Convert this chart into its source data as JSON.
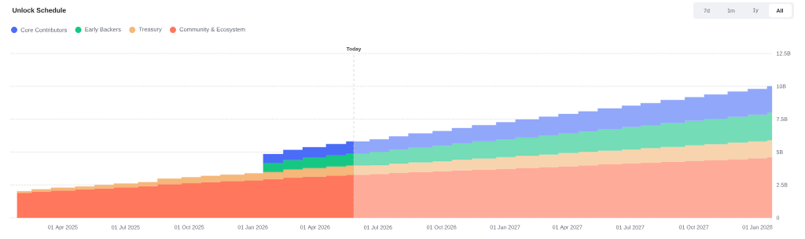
{
  "chart_data": {
    "type": "area",
    "title": "Unlock Schedule",
    "stacked": true,
    "xlim": [
      "2025-01-15",
      "2028-01-22"
    ],
    "xticks": [
      {
        "value": "2025-04-01",
        "label": "01 Apr 2025"
      },
      {
        "value": "2025-07-01",
        "label": "01 Jul 2025"
      },
      {
        "value": "2025-10-01",
        "label": "01 Oct 2025"
      },
      {
        "value": "2026-01-01",
        "label": "01 Jan 2026"
      },
      {
        "value": "2026-04-01",
        "label": "01 Apr 2026"
      },
      {
        "value": "2026-07-01",
        "label": "01 Jul 2026"
      },
      {
        "value": "2026-10-01",
        "label": "01 Oct 2026"
      },
      {
        "value": "2027-01-01",
        "label": "01 Jan 2027"
      },
      {
        "value": "2027-04-01",
        "label": "01 Apr 2027"
      },
      {
        "value": "2027-07-01",
        "label": "01 Jul 2027"
      },
      {
        "value": "2027-10-01",
        "label": "01 Oct 2027"
      },
      {
        "value": "2028-01-01",
        "label": "01 Jan 2028"
      }
    ],
    "ylim": [
      0,
      12.5
    ],
    "yticks": [
      0,
      {
        "value": 2.5,
        "label": "2.5B"
      },
      {
        "value": 5,
        "label": "5B"
      },
      {
        "value": 7.5,
        "label": "7.5B"
      },
      {
        "value": 10,
        "label": "10B"
      },
      {
        "value": 12.5,
        "label": "12.5B"
      }
    ],
    "grid": "y",
    "legend": "top left",
    "x": [
      "2025-01-25",
      "2025-02-15",
      "2025-02-15",
      "2025-03-15",
      "2025-03-15",
      "2025-04-19",
      "2025-04-19",
      "2025-05-17",
      "2025-05-17",
      "2025-06-14",
      "2025-06-14",
      "2025-07-19",
      "2025-07-19",
      "2025-08-16",
      "2025-08-16",
      "2025-09-20",
      "2025-09-20",
      "2025-10-18",
      "2025-10-18",
      "2025-11-15",
      "2025-11-15",
      "2025-12-20",
      "2025-12-20",
      "2026-01-16",
      "2026-01-16",
      "2026-02-14",
      "2026-02-14",
      "2026-03-14",
      "2026-03-14",
      "2026-04-17",
      "2026-04-17",
      "2026-05-16",
      "2026-05-16",
      "2026-05-27",
      "2026-05-27",
      "2026-06-19",
      "2026-06-19",
      "2026-07-17",
      "2026-07-17",
      "2026-08-14",
      "2026-08-14",
      "2026-09-18",
      "2026-09-18",
      "2026-10-16",
      "2026-10-16",
      "2026-11-14",
      "2026-11-14",
      "2026-12-19",
      "2026-12-19",
      "2027-01-16",
      "2027-01-16",
      "2027-02-19",
      "2027-02-19",
      "2027-03-19",
      "2027-03-19",
      "2027-04-17",
      "2027-04-17",
      "2027-05-15",
      "2027-05-15",
      "2027-06-19",
      "2027-06-19",
      "2027-07-16",
      "2027-07-16",
      "2027-08-14",
      "2027-08-14",
      "2027-09-18",
      "2027-09-18",
      "2027-10-16",
      "2027-10-16",
      "2027-11-19",
      "2027-11-19",
      "2027-12-18",
      "2027-12-18",
      "2028-01-15",
      "2028-01-15",
      "2028-01-22"
    ],
    "series": [
      {
        "name": "Community & Ecosystem",
        "color": "#ff775c",
        "values": [
          1.9,
          1.9,
          1.98,
          1.98,
          2.08,
          2.08,
          2.16,
          2.16,
          2.23,
          2.23,
          2.32,
          2.32,
          2.4,
          2.4,
          2.56,
          2.56,
          2.63,
          2.63,
          2.71,
          2.71,
          2.8,
          2.8,
          2.86,
          2.86,
          2.94,
          2.94,
          3.05,
          3.05,
          3.13,
          3.13,
          3.22,
          3.22,
          3.27,
          3.27,
          null,
          null,
          null,
          null,
          null,
          null,
          null,
          null,
          null,
          null,
          null,
          null,
          null,
          null,
          null,
          null,
          null,
          null,
          null,
          null,
          null,
          null,
          null,
          null,
          null,
          null,
          null,
          null,
          null,
          null,
          null,
          null,
          null,
          null,
          null,
          null,
          null,
          null,
          null,
          null,
          null,
          null
        ]
      },
      {
        "name": "Treasury",
        "color": "#f5b77a",
        "values": [
          0.12,
          0.12,
          0.18,
          0.18,
          0.2,
          0.2,
          0.22,
          0.22,
          0.27,
          0.27,
          0.28,
          0.28,
          0.3,
          0.3,
          0.42,
          0.42,
          0.45,
          0.45,
          0.47,
          0.47,
          0.48,
          0.48,
          0.52,
          0.52,
          0.54,
          0.54,
          0.63,
          0.63,
          0.65,
          0.65,
          0.68,
          0.68,
          0.71,
          0.71,
          null,
          null,
          null,
          null,
          null,
          null,
          null,
          null,
          null,
          null,
          null,
          null,
          null,
          null,
          null,
          null,
          null,
          null,
          null,
          null,
          null,
          null,
          null,
          null,
          null,
          null,
          null,
          null,
          null,
          null,
          null,
          null,
          null,
          null,
          null,
          null,
          null,
          null,
          null,
          null,
          null,
          null
        ]
      },
      {
        "name": "Early Backers",
        "color": "#16c784",
        "values": [
          null,
          null,
          null,
          null,
          null,
          null,
          null,
          null,
          null,
          null,
          null,
          null,
          null,
          null,
          null,
          null,
          null,
          null,
          null,
          null,
          null,
          null,
          null,
          null,
          0.7,
          0.7,
          0.72,
          0.72,
          0.8,
          0.8,
          0.84,
          0.84,
          0.92,
          0.92,
          null,
          null,
          null,
          null,
          null,
          null,
          null,
          null,
          null,
          null,
          null,
          null,
          null,
          null,
          null,
          null,
          null,
          null,
          null,
          null,
          null,
          null,
          null,
          null,
          null,
          null,
          null,
          null,
          null,
          null,
          null,
          null,
          null,
          null,
          null,
          null,
          null,
          null,
          null,
          null,
          null,
          null
        ]
      },
      {
        "name": "Core Contributors",
        "color": "#4a6cf7",
        "values": [
          null,
          null,
          null,
          null,
          null,
          null,
          null,
          null,
          null,
          null,
          null,
          null,
          null,
          null,
          null,
          null,
          null,
          null,
          null,
          null,
          null,
          null,
          null,
          null,
          0.66,
          0.66,
          0.76,
          0.76,
          0.78,
          0.78,
          0.86,
          0.86,
          0.9,
          0.9,
          null,
          null,
          null,
          null,
          null,
          null,
          null,
          null,
          null,
          null,
          null,
          null,
          null,
          null,
          null,
          null,
          null,
          null,
          null,
          null,
          null,
          null,
          null,
          null,
          null,
          null,
          null,
          null,
          null,
          null,
          null,
          null,
          null,
          null,
          null,
          null,
          null,
          null,
          null,
          null,
          null,
          null
        ]
      },
      {
        "color": "#ffab9a",
        "values": [
          null,
          null,
          null,
          null,
          null,
          null,
          null,
          null,
          null,
          null,
          null,
          null,
          null,
          null,
          null,
          null,
          null,
          null,
          null,
          null,
          null,
          null,
          null,
          null,
          null,
          null,
          null,
          null,
          null,
          null,
          null,
          null,
          null,
          null,
          3.27,
          3.27,
          3.34,
          3.34,
          3.41,
          3.41,
          3.48,
          3.48,
          3.54,
          3.54,
          3.61,
          3.61,
          3.65,
          3.65,
          3.72,
          3.72,
          3.79,
          3.79,
          3.86,
          3.86,
          3.92,
          3.92,
          3.99,
          3.99,
          4.06,
          4.06,
          4.13,
          4.13,
          4.19,
          4.19,
          4.26,
          4.26,
          4.33,
          4.33,
          4.39,
          4.39,
          4.46,
          4.46,
          4.53,
          4.53,
          4.62,
          4.62
        ]
      },
      {
        "color": "#f8d4ae",
        "values": [
          null,
          null,
          null,
          null,
          null,
          null,
          null,
          null,
          null,
          null,
          null,
          null,
          null,
          null,
          null,
          null,
          null,
          null,
          null,
          null,
          null,
          null,
          null,
          null,
          null,
          null,
          null,
          null,
          null,
          null,
          null,
          null,
          null,
          null,
          0.71,
          0.71,
          0.67,
          0.67,
          0.72,
          0.72,
          0.74,
          0.74,
          0.76,
          0.76,
          0.81,
          0.81,
          0.86,
          0.86,
          0.9,
          0.9,
          0.94,
          0.94,
          0.96,
          0.96,
          1.01,
          1.01,
          1.03,
          1.03,
          1.05,
          1.05,
          1.07,
          1.07,
          1.12,
          1.12,
          1.14,
          1.14,
          1.19,
          1.19,
          1.22,
          1.22,
          1.26,
          1.26,
          1.28,
          1.28,
          1.28,
          1.28
        ]
      },
      {
        "color": "#74dcb6",
        "values": [
          null,
          null,
          null,
          null,
          null,
          null,
          null,
          null,
          null,
          null,
          null,
          null,
          null,
          null,
          null,
          null,
          null,
          null,
          null,
          null,
          null,
          null,
          null,
          null,
          null,
          null,
          null,
          null,
          null,
          null,
          null,
          null,
          null,
          null,
          0.92,
          0.92,
          1.01,
          1.01,
          1.05,
          1.05,
          1.12,
          1.12,
          1.19,
          1.19,
          1.23,
          1.23,
          1.3,
          1.3,
          1.34,
          1.34,
          1.39,
          1.39,
          1.44,
          1.44,
          1.48,
          1.48,
          1.55,
          1.55,
          1.62,
          1.62,
          1.71,
          1.71,
          1.75,
          1.75,
          1.82,
          1.82,
          1.86,
          1.86,
          1.92,
          1.92,
          1.97,
          1.97,
          2.04,
          2.04,
          2.1,
          2.1
        ]
      },
      {
        "color": "#91a7fa",
        "values": [
          null,
          null,
          null,
          null,
          null,
          null,
          null,
          null,
          null,
          null,
          null,
          null,
          null,
          null,
          null,
          null,
          null,
          null,
          null,
          null,
          null,
          null,
          null,
          null,
          null,
          null,
          null,
          null,
          null,
          null,
          null,
          null,
          null,
          null,
          0.9,
          0.9,
          0.94,
          0.94,
          1.01,
          1.01,
          1.07,
          1.07,
          1.1,
          1.1,
          1.17,
          1.17,
          1.23,
          1.23,
          1.3,
          1.3,
          1.35,
          1.35,
          1.43,
          1.43,
          1.48,
          1.48,
          1.52,
          1.52,
          1.59,
          1.59,
          1.61,
          1.61,
          1.66,
          1.66,
          1.73,
          1.73,
          1.79,
          1.79,
          1.84,
          1.84,
          1.91,
          1.91,
          1.95,
          1.95,
          2.0,
          2.0
        ]
      }
    ],
    "ref_lines": [
      {
        "axis": "x",
        "value": "2026-05-27",
        "label": "Today",
        "color": "#c0c0c8",
        "line_style": "dashed"
      }
    ],
    "annotations": [
      "7d",
      "1m",
      "1y",
      "All"
    ]
  }
}
